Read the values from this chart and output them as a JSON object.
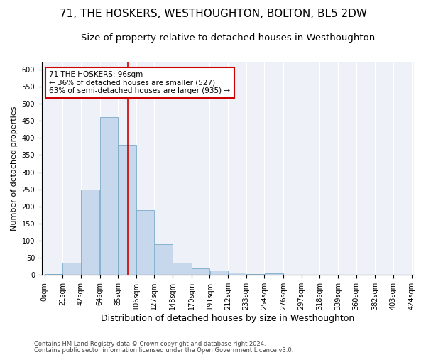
{
  "title1": "71, THE HOSKERS, WESTHOUGHTON, BOLTON, BL5 2DW",
  "title2": "Size of property relative to detached houses in Westhoughton",
  "xlabel": "Distribution of detached houses by size in Westhoughton",
  "ylabel": "Number of detached properties",
  "footnote1": "Contains HM Land Registry data © Crown copyright and database right 2024.",
  "footnote2": "Contains public sector information licensed under the Open Government Licence v3.0.",
  "property_label": "71 THE HOSKERS: 96sqm",
  "annotation_left": "← 36% of detached houses are smaller (527)",
  "annotation_right": "63% of semi-detached houses are larger (935) →",
  "property_size": 96,
  "bar_color": "#c8d8ec",
  "bar_edge_color": "#7aaac8",
  "vline_color": "#cc0000",
  "vline_x": 96,
  "annotation_box_color": "#cc0000",
  "background_color": "#eef2f8",
  "grid_color": "#ffffff",
  "bin_edges": [
    0,
    21,
    42,
    64,
    85,
    106,
    127,
    148,
    170,
    191,
    212,
    233,
    254,
    276,
    297,
    318,
    339,
    360,
    382,
    403,
    424
  ],
  "bin_heights": [
    2,
    35,
    250,
    460,
    379,
    190,
    90,
    35,
    20,
    13,
    6,
    2,
    4,
    1,
    0,
    0,
    0,
    1,
    0,
    1
  ],
  "ylim": [
    0,
    620
  ],
  "yticks": [
    0,
    50,
    100,
    150,
    200,
    250,
    300,
    350,
    400,
    450,
    500,
    550,
    600
  ],
  "title1_fontsize": 11,
  "title2_fontsize": 9.5,
  "xlabel_fontsize": 9,
  "ylabel_fontsize": 8,
  "tick_label_fontsize": 7,
  "annotation_fontsize": 7.5,
  "footnote_fontsize": 6
}
